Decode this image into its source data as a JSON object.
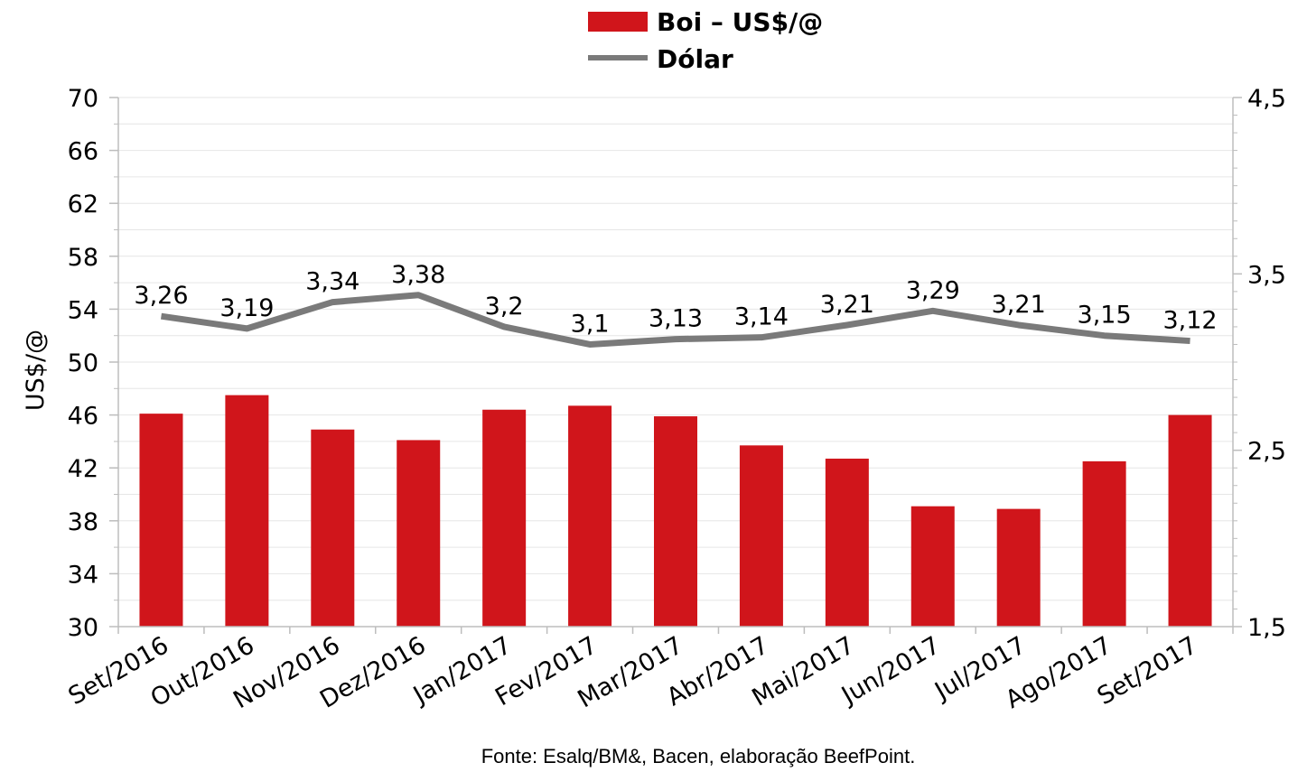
{
  "colors": {
    "bar": "#d0151b",
    "line": "#7a7a7a",
    "grid": "#e6e6e6",
    "axis": "#bdbdbd"
  },
  "source": "Fonte: Esalq/BM&, Bacen, elaboração BeefPoint.",
  "chart_data": {
    "type": "bar",
    "title": "",
    "categories": [
      "Set/2016",
      "Out/2016",
      "Nov/2016",
      "Dez/2016",
      "Jan/2017",
      "Fev/2017",
      "Mar/2017",
      "Abr/2017",
      "Mai/2017",
      "Jun/2017",
      "Jul/2017",
      "Ago/2017",
      "Set/2017"
    ],
    "series": [
      {
        "name": "Boi – US$/@",
        "type": "bar",
        "axis": "left",
        "values": [
          46.1,
          47.5,
          44.9,
          44.1,
          46.4,
          46.7,
          45.9,
          43.7,
          42.7,
          39.1,
          38.9,
          42.5,
          46.0
        ]
      },
      {
        "name": "Dólar",
        "type": "line",
        "axis": "right",
        "values": [
          3.26,
          3.19,
          3.34,
          3.38,
          3.2,
          3.1,
          3.13,
          3.14,
          3.21,
          3.29,
          3.21,
          3.15,
          3.12
        ],
        "data_labels": [
          "3,26",
          "3,19",
          "3,34",
          "3,38",
          "3,2",
          "3,1",
          "3,13",
          "3,14",
          "3,21",
          "3,29",
          "3,21",
          "3,15",
          "3,12"
        ]
      }
    ],
    "ylabel": "US$/@",
    "ylim": [
      30,
      70
    ],
    "yticks": [
      "70",
      "66",
      "62",
      "58",
      "54",
      "50",
      "46",
      "42",
      "38",
      "34",
      "30"
    ],
    "y2lim": [
      1.5,
      4.5
    ],
    "y2ticks": [
      "4,5",
      "3,5",
      "2,5",
      "1,5"
    ],
    "legend_position": "top-center",
    "grid": true
  }
}
